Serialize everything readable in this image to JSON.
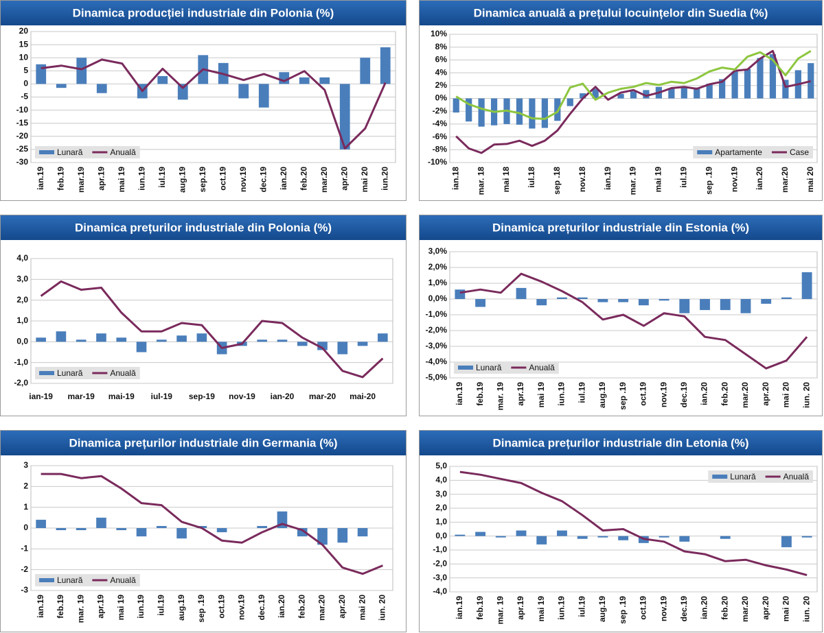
{
  "chart_data": [
    {
      "type": "combo",
      "title": "Dinamica producției industriale din Polonia (%)",
      "categories": [
        "ian.19",
        "feb.19",
        "mar.19",
        "apr.19",
        "mai 19",
        "iun.19",
        "iul.19",
        "aug.19",
        "sep.19",
        "oct.19",
        "nov.19",
        "dec.19",
        "ian.20",
        "feb.20",
        "mar.20",
        "apr.20",
        "mai 20",
        "iun.20"
      ],
      "series": [
        {
          "name": "Lunară",
          "kind": "bar",
          "color": "#4a7ebb",
          "values": [
            7.5,
            -1.5,
            10,
            -3.5,
            0,
            -5.5,
            3,
            -6,
            11,
            8,
            -5.5,
            -9,
            4.5,
            2.5,
            2.5,
            -25,
            10,
            14
          ]
        },
        {
          "name": "Anuală",
          "kind": "line",
          "color": "#7a2a5c",
          "values": [
            6,
            7,
            5.6,
            9.3,
            7.8,
            -2.7,
            5.8,
            -1.5,
            5.6,
            3.8,
            1.5,
            3.8,
            1.1,
            4.9,
            -2.3,
            -24.6,
            -17,
            0.5
          ]
        }
      ],
      "ylim": [
        -30,
        20
      ],
      "yticks": [
        -30,
        -25,
        -20,
        -15,
        -10,
        -5,
        0,
        5,
        10,
        15,
        20
      ],
      "grid": true,
      "legend": "lower left"
    },
    {
      "type": "combo",
      "title": "Dinamica anuală a prețului locuințelor din Suedia (%)",
      "categories": [
        "ian.18",
        null,
        "mar. 18",
        null,
        "mai 18",
        null,
        "iul.18",
        null,
        "sep .18",
        null,
        "nov.18",
        null,
        "ian.19",
        null,
        "mar. 19",
        null,
        "mai 19",
        null,
        "iul.19",
        null,
        "sep .19",
        null,
        "nov.19",
        null,
        "ian.20",
        null,
        "mar.20",
        null,
        "mai 20"
      ],
      "series": [
        {
          "name": "Apartamente",
          "kind": "bar",
          "color": "#4a7ebb",
          "values": [
            -2.2,
            -3.6,
            -4.4,
            -4.2,
            -4.0,
            -4.1,
            -4.7,
            -4.6,
            -3.5,
            -1.2,
            0.8,
            1.5,
            0,
            0.7,
            1.1,
            1.3,
            1.8,
            1.5,
            1.8,
            1.7,
            2.3,
            3.0,
            4.2,
            4.6,
            6.3,
            6.9,
            2.9,
            4.4,
            5.5
          ]
        },
        {
          "name": "Case",
          "kind": "line",
          "color": "#7a2a5c",
          "values": [
            -5.9,
            -7.8,
            -8.5,
            -7.2,
            -7.1,
            -6.6,
            -7.4,
            -6.6,
            -5.0,
            -2.4,
            0,
            1.8,
            -0.2,
            0.9,
            1.3,
            0.4,
            0.9,
            1.6,
            1.8,
            1.5,
            2.2,
            2.6,
            4.3,
            4.5,
            6.2,
            7.4,
            1.8,
            2.2,
            2.7
          ]
        },
        {
          "kind": "line",
          "color": "#8dc63f",
          "values": [
            0.3,
            -0.9,
            -1.6,
            -2.1,
            -1.9,
            -2.3,
            -3.1,
            -3.2,
            -2.1,
            1.7,
            2.3,
            -0.2,
            0.9,
            1.5,
            1.8,
            2.4,
            2.1,
            2.6,
            2.4,
            3.1,
            4.2,
            4.8,
            4.5,
            6.5,
            7.2,
            6.0,
            3.6,
            6.2,
            7.4
          ]
        }
      ],
      "ylim": [
        -10,
        10
      ],
      "yticks": [
        {
          "value": -10,
          "label": "-10%"
        },
        {
          "value": -8,
          "label": "-8%"
        },
        {
          "value": -6,
          "label": "-6%"
        },
        {
          "value": -4,
          "label": "-4%"
        },
        {
          "value": -2,
          "label": "-2%"
        },
        {
          "value": 0,
          "label": "0%"
        },
        {
          "value": 2,
          "label": "2%"
        },
        {
          "value": 4,
          "label": "4%"
        },
        {
          "value": 6,
          "label": "6%"
        },
        {
          "value": 8,
          "label": "8%"
        },
        {
          "value": 10,
          "label": "10%"
        }
      ],
      "grid": true,
      "legend": "lower right"
    },
    {
      "type": "combo",
      "title": "Dinamica prețurilor industriale din Polonia (%)",
      "categories": [
        "ian-19",
        null,
        "mar-19",
        null,
        "mai-19",
        null,
        "iul-19",
        null,
        "sep-19",
        null,
        "nov-19",
        null,
        "ian-20",
        null,
        "mar-20",
        null,
        "mai-20",
        null
      ],
      "series": [
        {
          "name": "Lunară",
          "kind": "bar",
          "color": "#4a7ebb",
          "values": [
            0.2,
            0.5,
            0.1,
            0.4,
            0.2,
            -0.5,
            0.1,
            0.3,
            0.4,
            -0.6,
            -0.2,
            0.1,
            0.1,
            -0.2,
            -0.4,
            -0.6,
            -0.2,
            0.4
          ]
        },
        {
          "name": "Anuală",
          "kind": "line",
          "color": "#7a2a5c",
          "values": [
            2.2,
            2.9,
            2.5,
            2.6,
            1.4,
            0.5,
            0.5,
            0.9,
            0.8,
            -0.3,
            -0.1,
            1.0,
            0.9,
            0.2,
            -0.3,
            -1.4,
            -1.7,
            -0.8
          ]
        }
      ],
      "ylim": [
        -2,
        4
      ],
      "yticks": [
        {
          "value": -2,
          "label": "-2,0"
        },
        {
          "value": -1,
          "label": "-1,0"
        },
        {
          "value": 0,
          "label": "0,0"
        },
        {
          "value": 1,
          "label": "1,0"
        },
        {
          "value": 2,
          "label": "2,0"
        },
        {
          "value": 3,
          "label": "3,0"
        },
        {
          "value": 4,
          "label": "4,0"
        }
      ],
      "grid": true,
      "legend": "lower left",
      "rotate_labels": false
    },
    {
      "type": "combo",
      "title": "Dinamica prețurilor industriale din Estonia (%)",
      "categories": [
        "ian.19",
        "feb.19",
        "mar. 19",
        "apr.19",
        "mai 19",
        "iun.19",
        "iul.19",
        "aug.19",
        "sep .19",
        "oct.19",
        "nov.19",
        "dec.19",
        "ian.20",
        "feb.20",
        "mar.20",
        "apr.20",
        "mai 20",
        "iun. 20"
      ],
      "series": [
        {
          "name": "Lunară",
          "kind": "bar",
          "color": "#4a7ebb",
          "values": [
            0.6,
            -0.5,
            0,
            0.7,
            -0.4,
            0.1,
            0.1,
            -0.2,
            -0.2,
            -0.4,
            -0.1,
            -0.9,
            -0.7,
            -0.7,
            -0.9,
            -0.3,
            0.1,
            1.7
          ]
        },
        {
          "name": "Anuală",
          "kind": "line",
          "color": "#7a2a5c",
          "values": [
            0.4,
            0.6,
            0.4,
            1.6,
            1.1,
            0.5,
            -0.2,
            -1.3,
            -1.0,
            -1.7,
            -0.9,
            -1.1,
            -2.4,
            -2.6,
            -3.5,
            -4.4,
            -3.9,
            -2.4
          ]
        }
      ],
      "ylim": [
        -5,
        3
      ],
      "yticks": [
        {
          "value": -5,
          "label": "-5,0%"
        },
        {
          "value": -4,
          "label": "-4,0%"
        },
        {
          "value": -3,
          "label": "-3,0%"
        },
        {
          "value": -2,
          "label": "-2,0%"
        },
        {
          "value": -1,
          "label": "-1,0%"
        },
        {
          "value": 0,
          "label": "0,0%"
        },
        {
          "value": 1,
          "label": "1,0%"
        },
        {
          "value": 2,
          "label": "2,0%"
        },
        {
          "value": 3,
          "label": "3,0%"
        }
      ],
      "grid": true,
      "legend": "lower left"
    },
    {
      "type": "combo",
      "title": "Dinamica prețurilor industriale din Germania (%)",
      "categories": [
        "ian.19",
        "feb.19",
        "mar. 19",
        "apr.19",
        "mai 19",
        "iun.19",
        "iul.19",
        "aug.19",
        "sep .19",
        "oct.19",
        "nov.19",
        "dec.19",
        "ian.20",
        "feb.20",
        "mar.20",
        "apr.20",
        "mai 20",
        "iun. 20"
      ],
      "series": [
        {
          "name": "Lunară",
          "kind": "bar",
          "color": "#4a7ebb",
          "values": [
            0.4,
            -0.1,
            -0.1,
            0.5,
            -0.1,
            -0.4,
            0.1,
            -0.5,
            0.1,
            -0.2,
            0,
            0.1,
            0.8,
            -0.4,
            -0.8,
            -0.7,
            -0.4,
            null
          ]
        },
        {
          "name": "Anuală",
          "kind": "line",
          "color": "#7a2a5c",
          "values": [
            2.6,
            2.6,
            2.4,
            2.5,
            1.9,
            1.2,
            1.1,
            0.3,
            0,
            -0.6,
            -0.7,
            -0.2,
            0.2,
            -0.1,
            -0.8,
            -1.9,
            -2.2,
            -1.8
          ]
        }
      ],
      "ylim": [
        -3,
        3
      ],
      "yticks": [
        -3,
        -2,
        -1,
        0,
        1,
        2,
        3
      ],
      "grid": true,
      "legend": "lower left"
    },
    {
      "type": "combo",
      "title": "Dinamica prețurilor industriale din Letonia (%)",
      "categories": [
        "ian.19",
        "feb.19",
        "mar. 19",
        "apr.19",
        "mai 19",
        "iun.19",
        "iul.19",
        "aug.19",
        "sep .19",
        "oct.19",
        "nov.19",
        "dec.19",
        "ian.20",
        "feb.20",
        "mar.20",
        "apr.20",
        "mai 20",
        "iun. 20"
      ],
      "series": [
        {
          "name": "Lunară",
          "kind": "bar",
          "color": "#4a7ebb",
          "values": [
            0.1,
            0.3,
            -0.1,
            0.4,
            -0.6,
            0.4,
            -0.2,
            -0.1,
            -0.3,
            -0.5,
            -0.1,
            -0.4,
            0,
            -0.2,
            0,
            0,
            -0.8,
            -0.1
          ]
        },
        {
          "name": "Anuală",
          "kind": "line",
          "color": "#7a2a5c",
          "values": [
            4.6,
            4.4,
            4.1,
            3.8,
            3.1,
            2.5,
            1.5,
            0.4,
            0.5,
            -0.2,
            -0.4,
            -1.1,
            -1.3,
            -1.8,
            -1.7,
            -2.1,
            -2.4,
            -2.8
          ]
        }
      ],
      "ylim": [
        -4,
        5
      ],
      "yticks": [
        {
          "value": -4,
          "label": "-4,0"
        },
        {
          "value": -3,
          "label": "-3,0"
        },
        {
          "value": -2,
          "label": "-2,0"
        },
        {
          "value": -1,
          "label": "-1,0"
        },
        {
          "value": 0,
          "label": "0,0"
        },
        {
          "value": 1,
          "label": "1,0"
        },
        {
          "value": 2,
          "label": "2,0"
        },
        {
          "value": 3,
          "label": "3,0"
        },
        {
          "value": 4,
          "label": "4,0"
        },
        {
          "value": 5,
          "label": "5,0"
        }
      ],
      "grid": true,
      "legend": "upper right"
    }
  ]
}
